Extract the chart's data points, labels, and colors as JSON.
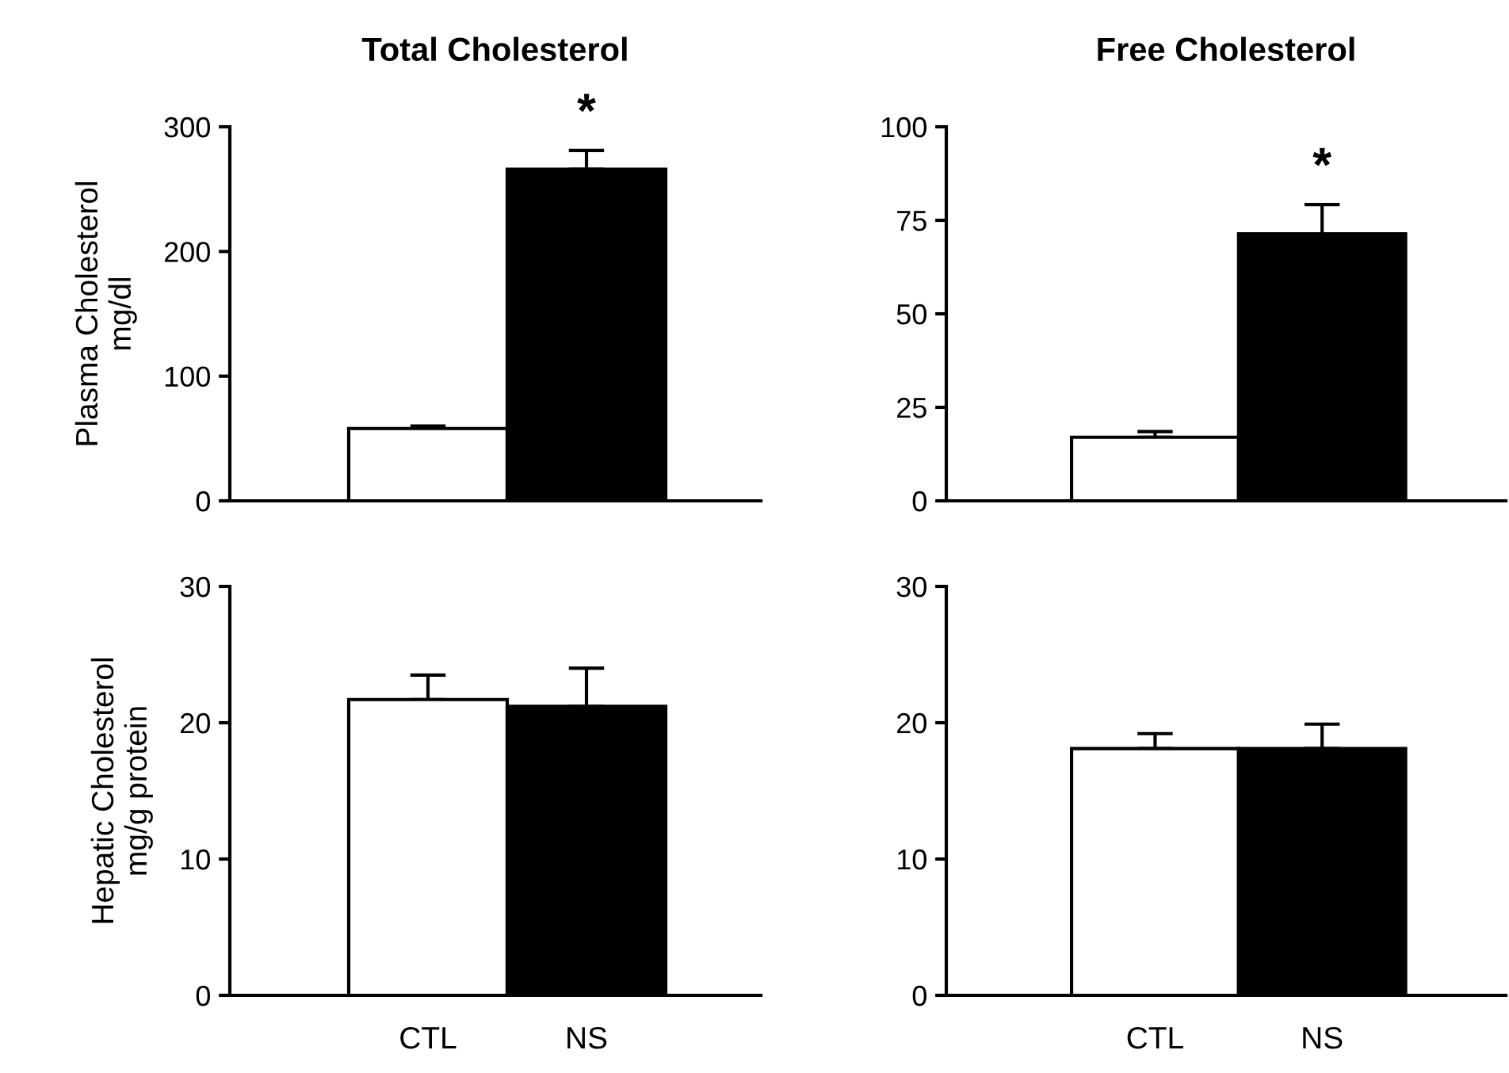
{
  "chart_data": [
    {
      "type": "bar",
      "title": "Total Cholesterol",
      "ylabel": "Plasma Cholesterol\nmg/dl",
      "categories": [
        "CTL",
        "NS"
      ],
      "values": [
        58,
        266
      ],
      "colors": [
        "#ffffff",
        "#000000"
      ],
      "errors": [
        [
          58,
          60
        ],
        [
          266,
          281
        ]
      ],
      "ylim": [
        0,
        300
      ],
      "yticks": [
        0,
        100,
        200,
        300
      ],
      "tick_labels": "y",
      "annotations": [
        {
          "text": "*",
          "x": "NS",
          "y": 281
        }
      ]
    },
    {
      "type": "bar",
      "title": "Free Cholesterol",
      "categories": [
        "CTL",
        "NS"
      ],
      "values": [
        17,
        71.4
      ],
      "colors": [
        "#ffffff",
        "#000000"
      ],
      "errors": [
        [
          17,
          18.5
        ],
        [
          71.4,
          79.2
        ]
      ],
      "ylim": [
        0,
        100
      ],
      "yticks": [
        0,
        25,
        50,
        75,
        100
      ],
      "tick_labels": "y",
      "annotations": [
        {
          "text": "*",
          "x": "NS",
          "y": 79.2
        }
      ]
    },
    {
      "type": "bar",
      "ylabel": "Hepatic Cholesterol\nmg/g protein",
      "categories": [
        "CTL",
        "NS"
      ],
      "values": [
        21.7,
        21.2
      ],
      "colors": [
        "#ffffff",
        "#000000"
      ],
      "errors": [
        [
          21.7,
          23.5
        ],
        [
          21.2,
          24.0
        ]
      ],
      "ylim": [
        0,
        30
      ],
      "yticks": [
        0,
        10,
        20,
        30
      ]
    },
    {
      "type": "bar",
      "categories": [
        "CTL",
        "NS"
      ],
      "values": [
        18.1,
        18.1
      ],
      "colors": [
        "#ffffff",
        "#000000"
      ],
      "errors": [
        [
          18.1,
          19.2
        ],
        [
          18.1,
          19.9
        ]
      ],
      "ylim": [
        0,
        30
      ],
      "yticks": [
        0,
        10,
        20,
        30
      ]
    }
  ]
}
